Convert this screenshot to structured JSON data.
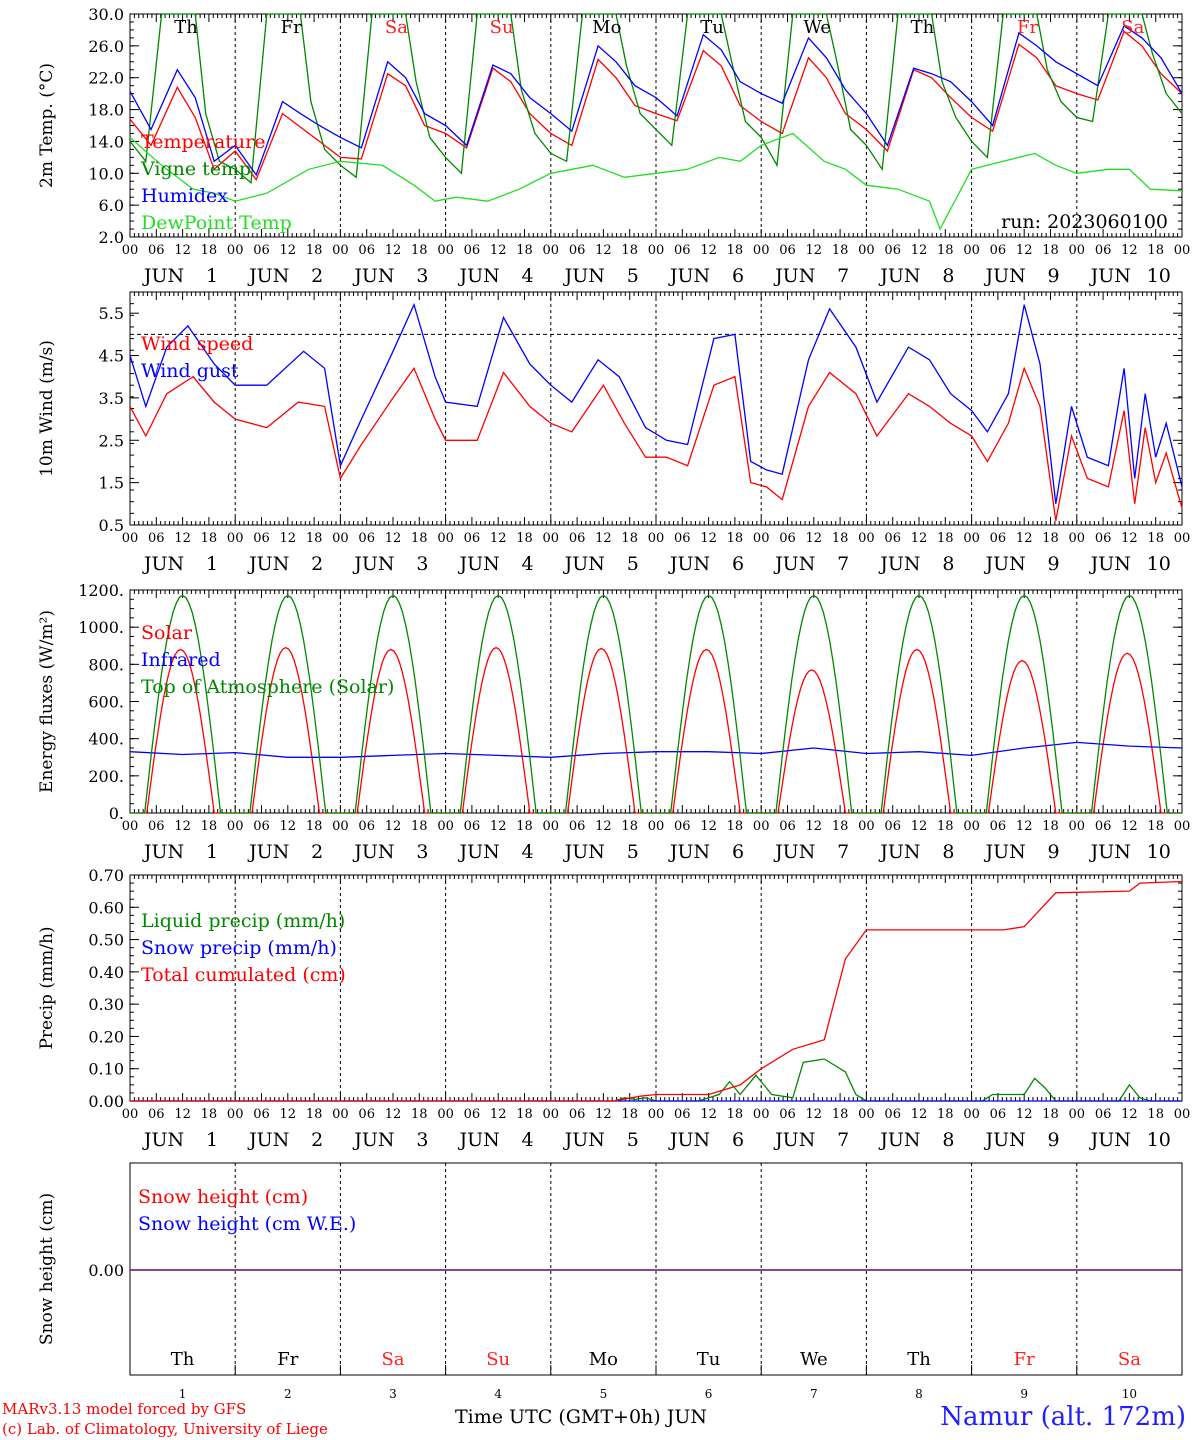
{
  "colors": {
    "red": "#ff0000",
    "green": "#008800",
    "blue": "#0000ff",
    "lightgreen": "#22dd22",
    "purple": "#7a2a8a",
    "black": "#000000",
    "weekend": "#ff2020"
  },
  "days": [
    {
      "abbr": "Th",
      "num": "1",
      "weekend": false
    },
    {
      "abbr": "Fr",
      "num": "2",
      "weekend": false
    },
    {
      "abbr": "Sa",
      "num": "3",
      "weekend": true
    },
    {
      "abbr": "Su",
      "num": "4",
      "weekend": true
    },
    {
      "abbr": "Mo",
      "num": "5",
      "weekend": false
    },
    {
      "abbr": "Tu",
      "num": "6",
      "weekend": false
    },
    {
      "abbr": "We",
      "num": "7",
      "weekend": false
    },
    {
      "abbr": "Th",
      "num": "8",
      "weekend": false
    },
    {
      "abbr": "Fr",
      "num": "9",
      "weekend": true
    },
    {
      "abbr": "Sa",
      "num": "10",
      "weekend": true
    }
  ],
  "month_label": "JUN",
  "hour_ticks": [
    "00",
    "06",
    "12",
    "18"
  ],
  "end_tick": "00",
  "footer": {
    "model": "MARv3.13 model forced by GFS",
    "credit": "(c) Lab. of Climatology, University of Liege",
    "axis": "Time UTC (GMT+0h) JUN",
    "station": "Namur (alt. 172m)"
  },
  "chart_data": [
    {
      "type": "line",
      "ylabel": "2m Temp. (°C)",
      "ylim": [
        2,
        30
      ],
      "yticks": [
        "2.0",
        "6.0",
        "10.0",
        "14.0",
        "18.0",
        "22.0",
        "26.0",
        "30.0"
      ],
      "annotation": "run: 2023060100",
      "series": [
        {
          "name": "Temperature",
          "color": "red",
          "x": [
            0,
            0.2,
            0.45,
            0.62,
            0.8,
            1.0,
            1.2,
            1.45,
            1.62,
            1.8,
            2.0,
            2.2,
            2.45,
            2.62,
            2.8,
            3.0,
            3.2,
            3.45,
            3.62,
            3.8,
            4.0,
            4.2,
            4.45,
            4.62,
            4.8,
            5.0,
            5.2,
            5.45,
            5.62,
            5.8,
            6.0,
            6.2,
            6.45,
            6.62,
            6.8,
            7.0,
            7.2,
            7.45,
            7.62,
            7.8,
            8.0,
            8.2,
            8.45,
            8.62,
            8.8,
            9.0,
            9.2,
            9.45,
            9.62,
            9.8,
            10.0
          ],
          "y": [
            16.8,
            13.5,
            20.8,
            17.0,
            10.5,
            12.8,
            9.2,
            17.5,
            15.8,
            14.0,
            12.0,
            11.8,
            22.5,
            21.0,
            16.0,
            15.0,
            13.2,
            23.2,
            21.5,
            17.5,
            15.0,
            13.5,
            24.3,
            22.0,
            18.5,
            17.5,
            16.6,
            25.4,
            23.5,
            18.5,
            16.5,
            15.0,
            24.5,
            22.0,
            17.5,
            15.5,
            12.8,
            23.0,
            22.0,
            19.5,
            17.0,
            15.3,
            26.2,
            24.5,
            21.0,
            20.0,
            19.2,
            27.8,
            26.0,
            22.5,
            20.0
          ]
        },
        {
          "name": "Vigne temp",
          "color": "green",
          "x": [
            0,
            0.15,
            0.3,
            0.4,
            0.62,
            0.72,
            0.85,
            1.0,
            1.15,
            1.3,
            1.4,
            1.62,
            1.72,
            1.85,
            2.0,
            2.15,
            2.3,
            2.4,
            2.62,
            2.72,
            2.85,
            3.0,
            3.15,
            3.3,
            3.4,
            3.62,
            3.72,
            3.85,
            4.0,
            4.15,
            4.3,
            4.4,
            4.62,
            4.72,
            4.85,
            5.0,
            5.15,
            5.3,
            5.4,
            5.62,
            5.72,
            5.85,
            6.0,
            6.15,
            6.3,
            6.4,
            6.62,
            6.72,
            6.85,
            7.0,
            7.15,
            7.3,
            7.4,
            7.62,
            7.72,
            7.85,
            8.0,
            8.15,
            8.3,
            8.4,
            8.62,
            8.72,
            8.85,
            9.0,
            9.15,
            9.3,
            9.4,
            9.62,
            9.72,
            9.85,
            10.0
          ],
          "y": [
            14.0,
            11.5,
            30.0,
            30.0,
            30.0,
            17.5,
            11.5,
            10.5,
            8.8,
            30.0,
            30.0,
            30.0,
            19.0,
            13.0,
            11.0,
            9.5,
            30.0,
            30.0,
            30.0,
            21.5,
            14.5,
            12.0,
            10.0,
            30.0,
            30.0,
            30.0,
            20.5,
            15.0,
            12.5,
            11.5,
            30.0,
            30.0,
            30.0,
            23.5,
            17.5,
            15.5,
            13.5,
            30.0,
            30.0,
            30.0,
            24.0,
            16.5,
            14.5,
            11.0,
            30.0,
            30.0,
            30.0,
            24.0,
            15.5,
            13.5,
            10.5,
            30.0,
            30.0,
            30.0,
            21.5,
            17.0,
            14.0,
            12.0,
            30.0,
            30.0,
            30.0,
            23.0,
            19.0,
            17.0,
            16.5,
            30.0,
            30.0,
            30.0,
            25.0,
            20.0,
            17.5
          ]
        },
        {
          "name": "Humidex",
          "color": "blue",
          "x": [
            0,
            0.2,
            0.45,
            0.62,
            0.8,
            1.0,
            1.2,
            1.45,
            1.62,
            1.8,
            2.0,
            2.2,
            2.45,
            2.62,
            2.8,
            3.0,
            3.2,
            3.45,
            3.62,
            3.8,
            4.0,
            4.2,
            4.45,
            4.62,
            4.8,
            5.0,
            5.2,
            5.45,
            5.62,
            5.8,
            6.0,
            6.2,
            6.45,
            6.62,
            6.8,
            7.0,
            7.2,
            7.45,
            7.62,
            7.8,
            8.0,
            8.2,
            8.45,
            8.62,
            8.8,
            9.0,
            9.2,
            9.45,
            9.62,
            9.8,
            10.0
          ],
          "y": [
            20.3,
            15.5,
            23.0,
            19.5,
            11.5,
            13.5,
            9.8,
            19.0,
            17.5,
            16.0,
            14.5,
            13.2,
            24.0,
            22.0,
            17.5,
            16.0,
            13.5,
            23.6,
            22.5,
            19.5,
            17.5,
            15.3,
            26.0,
            24.0,
            21.0,
            19.5,
            17.2,
            27.4,
            25.5,
            21.5,
            20.0,
            18.8,
            27.0,
            24.5,
            20.5,
            17.5,
            13.5,
            23.2,
            22.5,
            21.5,
            19.0,
            16.0,
            27.6,
            26.0,
            24.0,
            22.5,
            21.0,
            28.5,
            27.0,
            24.5,
            20.0
          ]
        },
        {
          "name": "DewPoint Temp",
          "color": "lightgreen",
          "x": [
            0,
            0.3,
            0.6,
            0.8,
            1.0,
            1.3,
            1.7,
            2.0,
            2.4,
            2.7,
            2.9,
            3.1,
            3.4,
            3.7,
            4.0,
            4.4,
            4.7,
            5.0,
            5.3,
            5.6,
            5.8,
            6.0,
            6.3,
            6.6,
            6.8,
            7.0,
            7.3,
            7.6,
            7.7,
            7.9,
            8.0,
            8.3,
            8.6,
            8.8,
            9.0,
            9.3,
            9.5,
            9.7,
            10.0
          ],
          "y": [
            14.5,
            11.0,
            8.0,
            7.5,
            6.5,
            7.5,
            10.5,
            11.5,
            11.0,
            8.5,
            6.5,
            7.0,
            6.5,
            8.0,
            10.0,
            11.0,
            9.5,
            10.0,
            10.5,
            12.0,
            11.5,
            13.5,
            15.0,
            11.5,
            10.5,
            8.5,
            8.0,
            6.5,
            3.0,
            8.0,
            10.5,
            11.5,
            12.5,
            11.0,
            10.0,
            10.5,
            10.5,
            8.0,
            7.8
          ]
        }
      ]
    },
    {
      "type": "line",
      "ylabel": "10m Wind (m/s)",
      "ylim": [
        0.5,
        6.0
      ],
      "yticks": [
        "0.5",
        "1.5",
        "2.5",
        "3.5",
        "4.5",
        "5.5"
      ],
      "reference_line": 5.0,
      "series": [
        {
          "name": "Wind speed",
          "color": "red",
          "x": [
            0,
            0.15,
            0.35,
            0.6,
            0.8,
            1.0,
            1.3,
            1.6,
            1.85,
            2.0,
            2.2,
            2.5,
            2.7,
            2.9,
            3.0,
            3.3,
            3.55,
            3.8,
            4.0,
            4.2,
            4.5,
            4.7,
            4.9,
            5.1,
            5.3,
            5.55,
            5.75,
            5.9,
            6.05,
            6.2,
            6.45,
            6.65,
            6.9,
            7.1,
            7.4,
            7.6,
            7.8,
            8.0,
            8.15,
            8.35,
            8.5,
            8.65,
            8.8,
            8.95,
            9.1,
            9.3,
            9.45,
            9.55,
            9.65,
            9.75,
            9.85,
            10.0
          ],
          "y": [
            3.3,
            2.6,
            3.6,
            4.0,
            3.4,
            3.0,
            2.8,
            3.4,
            3.3,
            1.6,
            2.4,
            3.5,
            4.2,
            3.0,
            2.5,
            2.5,
            4.1,
            3.3,
            2.9,
            2.7,
            3.8,
            2.9,
            2.1,
            2.1,
            1.9,
            3.8,
            4.0,
            1.5,
            1.4,
            1.1,
            3.3,
            4.1,
            3.6,
            2.6,
            3.6,
            3.3,
            2.9,
            2.6,
            2.0,
            2.9,
            4.2,
            3.3,
            0.6,
            2.6,
            1.6,
            1.4,
            3.2,
            1.0,
            2.8,
            1.5,
            2.2,
            0.9
          ]
        },
        {
          "name": "Wind gust",
          "color": "blue",
          "x": [
            0,
            0.15,
            0.35,
            0.55,
            0.8,
            1.0,
            1.3,
            1.65,
            1.85,
            2.0,
            2.2,
            2.5,
            2.7,
            2.9,
            3.0,
            3.3,
            3.55,
            3.8,
            4.0,
            4.2,
            4.45,
            4.65,
            4.9,
            5.1,
            5.3,
            5.55,
            5.75,
            5.9,
            6.05,
            6.2,
            6.45,
            6.65,
            6.9,
            7.1,
            7.4,
            7.6,
            7.8,
            8.0,
            8.15,
            8.35,
            8.5,
            8.65,
            8.8,
            8.95,
            9.1,
            9.3,
            9.45,
            9.55,
            9.65,
            9.75,
            9.85,
            10.0
          ],
          "y": [
            4.5,
            3.3,
            4.7,
            5.2,
            4.3,
            3.8,
            3.8,
            4.6,
            4.2,
            1.9,
            3.0,
            4.6,
            5.7,
            4.0,
            3.4,
            3.3,
            5.4,
            4.3,
            3.8,
            3.4,
            4.4,
            4.0,
            2.8,
            2.5,
            2.4,
            4.9,
            5.0,
            2.0,
            1.8,
            1.7,
            4.4,
            5.6,
            4.7,
            3.4,
            4.7,
            4.4,
            3.6,
            3.2,
            2.7,
            3.6,
            5.7,
            4.3,
            1.0,
            3.3,
            2.1,
            1.9,
            4.2,
            1.6,
            3.6,
            2.1,
            2.9,
            1.4
          ]
        }
      ]
    },
    {
      "type": "line",
      "ylabel": "Energy fluxes (W/m²)",
      "ylim": [
        0,
        1200
      ],
      "yticks": [
        "0.",
        "200.",
        "400.",
        "600.",
        "800.",
        "1000.",
        "1200."
      ],
      "series": [
        {
          "name": "Solar",
          "color": "red",
          "diurnal": true,
          "daylight": [
            0.16,
            0.8
          ],
          "peaks": [
            880,
            890,
            880,
            890,
            885,
            880,
            770,
            880,
            820,
            860
          ]
        },
        {
          "name": "Infrared",
          "color": "blue",
          "x": [
            0,
            0.5,
            1.0,
            1.5,
            2.0,
            2.5,
            3.0,
            3.5,
            4.0,
            4.5,
            5.0,
            5.5,
            6.0,
            6.5,
            7.0,
            7.5,
            8.0,
            8.5,
            9.0,
            9.5,
            10.0
          ],
          "y": [
            330,
            315,
            325,
            300,
            300,
            310,
            320,
            310,
            300,
            320,
            330,
            330,
            320,
            350,
            320,
            330,
            310,
            350,
            380,
            360,
            350
          ]
        },
        {
          "name": "Top of Atmosphere (Solar)",
          "color": "green",
          "diurnal": true,
          "daylight": [
            0.14,
            0.86
          ],
          "peaks": [
            1170,
            1170,
            1170,
            1170,
            1170,
            1170,
            1170,
            1170,
            1170,
            1170
          ]
        }
      ]
    },
    {
      "type": "line",
      "ylabel": "Precip (mm/h)",
      "ylim": [
        0,
        0.7
      ],
      "yticks": [
        "0.00",
        "0.10",
        "0.20",
        "0.30",
        "0.40",
        "0.50",
        "0.60",
        "0.70"
      ],
      "series": [
        {
          "name": "Liquid precip (mm/h)",
          "color": "green",
          "x": [
            0,
            4.6,
            4.7,
            4.8,
            4.9,
            5.0,
            5.4,
            5.6,
            5.7,
            5.8,
            5.95,
            6.1,
            6.3,
            6.4,
            6.6,
            6.8,
            6.9,
            7.0,
            8.1,
            8.2,
            8.5,
            8.6,
            8.7,
            8.8,
            9.4,
            9.5,
            9.6,
            9.7,
            10.0
          ],
          "y": [
            0,
            0,
            0.01,
            0.005,
            0.01,
            0,
            0,
            0.02,
            0.06,
            0.02,
            0.08,
            0.02,
            0.01,
            0.12,
            0.13,
            0.09,
            0.02,
            0,
            0,
            0.02,
            0.02,
            0.07,
            0.04,
            0,
            0,
            0.05,
            0.01,
            0,
            0
          ]
        },
        {
          "name": "Snow precip (mm/h)",
          "color": "blue",
          "x": [
            0,
            10
          ],
          "y": [
            0,
            0
          ]
        },
        {
          "name": "Total cumulated (cm)",
          "color": "red",
          "x": [
            0,
            4.6,
            4.85,
            5.0,
            5.5,
            5.8,
            6.0,
            6.3,
            6.6,
            6.8,
            7.0,
            8.0,
            8.3,
            8.5,
            8.8,
            9.5,
            9.6,
            10.0
          ],
          "y": [
            0,
            0,
            0.015,
            0.02,
            0.02,
            0.05,
            0.1,
            0.16,
            0.19,
            0.44,
            0.53,
            0.53,
            0.53,
            0.54,
            0.645,
            0.65,
            0.675,
            0.68
          ]
        }
      ]
    },
    {
      "type": "line",
      "ylabel": "Snow height (cm)",
      "yticks": [
        "0.00"
      ],
      "series": [
        {
          "name": "Snow height (cm)",
          "color": "red",
          "x": [
            0,
            10
          ],
          "y": [
            0,
            0
          ]
        },
        {
          "name": "Snow height (cm W.E.)",
          "color": "blue",
          "x": [
            0,
            10
          ],
          "y": [
            0,
            0
          ]
        }
      ]
    }
  ]
}
